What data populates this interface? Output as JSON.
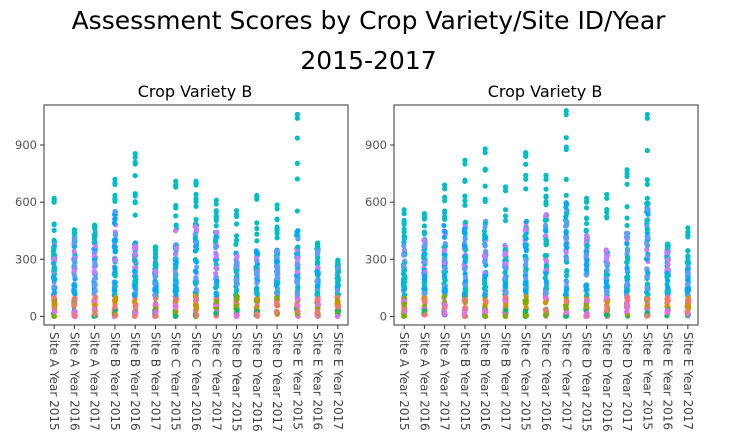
{
  "title_line1": "Assessment Scores by Crop Variety/Site ID/Year",
  "title_line2": "2015-2017",
  "colors": [
    "#e76bf3",
    "#7cae00",
    "#00bfc4",
    "#00a9ff",
    "#c77cff",
    "#f8766d",
    "#cd9600",
    "#00be67",
    "#619cff"
  ],
  "chart_data": [
    {
      "type": "scatter",
      "title": "Crop Variety B",
      "categories": [
        "Site A Year 2015",
        "Site A Year 2016",
        "Site A Year 2017",
        "Site B Year 2015",
        "Site B Year 2016",
        "Site B Year 2017",
        "Site C Year 2015",
        "Site C Year 2016",
        "Site C Year 2017",
        "Site D Year 2015",
        "Site D Year 2016",
        "Site D Year 2017",
        "Site E Year 2015",
        "Site E Year 2016",
        "Site E Year 2017"
      ],
      "y_ticks": [
        0,
        300,
        600,
        900
      ],
      "ylim": [
        -45,
        1110
      ],
      "max_values": [
        620,
        455,
        480,
        720,
        855,
        365,
        710,
        710,
        610,
        555,
        635,
        585,
        1060,
        385,
        295
      ],
      "cluster_top": [
        390,
        420,
        450,
        600,
        400,
        300,
        480,
        500,
        450,
        380,
        350,
        350,
        450,
        380,
        280
      ],
      "grid": false
    },
    {
      "type": "scatter",
      "title": "Crop Variety B",
      "categories": [
        "Site A Year 2015",
        "Site A Year 2016",
        "Site A Year 2017",
        "Site B Year 2015",
        "Site B Year 2016",
        "Site B Year 2017",
        "Site C Year 2015",
        "Site C Year 2016",
        "Site C Year 2017",
        "Site D Year 2015",
        "Site D Year 2016",
        "Site D Year 2017",
        "Site E Year 2015",
        "Site E Year 2016",
        "Site E Year 2017"
      ],
      "y_ticks": [
        0,
        300,
        600,
        900
      ],
      "ylim": [
        -45,
        1110
      ],
      "max_values": [
        560,
        540,
        690,
        820,
        880,
        680,
        860,
        740,
        1080,
        620,
        640,
        770,
        1060,
        380,
        465
      ],
      "cluster_top": [
        420,
        420,
        480,
        500,
        500,
        380,
        500,
        550,
        600,
        460,
        350,
        450,
        600,
        380,
        290
      ],
      "grid": false
    }
  ]
}
